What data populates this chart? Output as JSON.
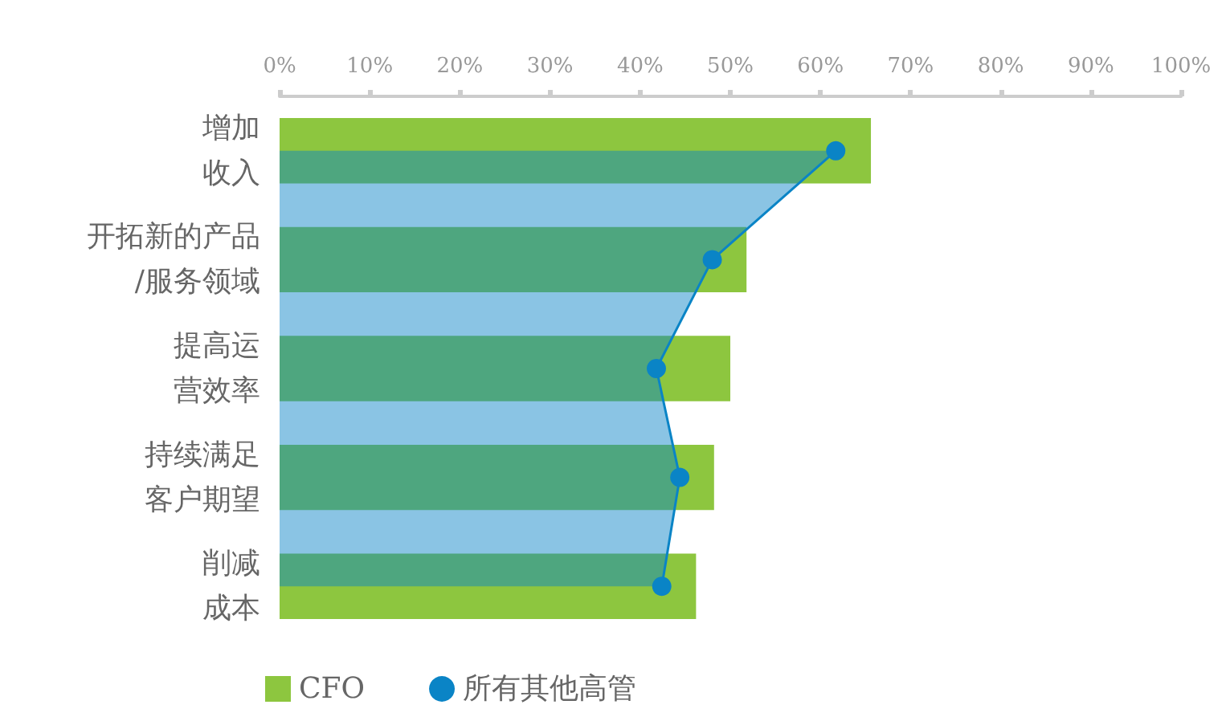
{
  "chart_data": {
    "type": "bar",
    "orientation": "horizontal",
    "categories": [
      "增加收入",
      "开拓新的产品/服务领域",
      "提高运营效率",
      "持续满足客户期望",
      "削减成本"
    ],
    "series": [
      {
        "name": "CFO",
        "color": "#8dc63f",
        "values": [
          65.6,
          51.8,
          50.0,
          48.2,
          46.2
        ]
      },
      {
        "name": "所有其他高管",
        "type": "area",
        "color": "#0a84c6",
        "values": [
          61.7,
          48.0,
          41.8,
          44.4,
          42.4
        ]
      }
    ],
    "xlim": [
      0,
      100
    ],
    "xticks": [
      {
        "value": 0,
        "label": "0%"
      },
      {
        "value": 10,
        "label": "10%"
      },
      {
        "value": 20,
        "label": "20%"
      },
      {
        "value": 30,
        "label": "30%"
      },
      {
        "value": 40,
        "label": "40%"
      },
      {
        "value": 50,
        "label": "50%"
      },
      {
        "value": 60,
        "label": "60%"
      },
      {
        "value": 70,
        "label": "70%"
      },
      {
        "value": 80,
        "label": "80%"
      },
      {
        "value": 90,
        "label": "90%"
      },
      {
        "value": 100,
        "label": "100%"
      }
    ],
    "grid": false,
    "legend": "bottom left",
    "marker": "circle"
  }
}
